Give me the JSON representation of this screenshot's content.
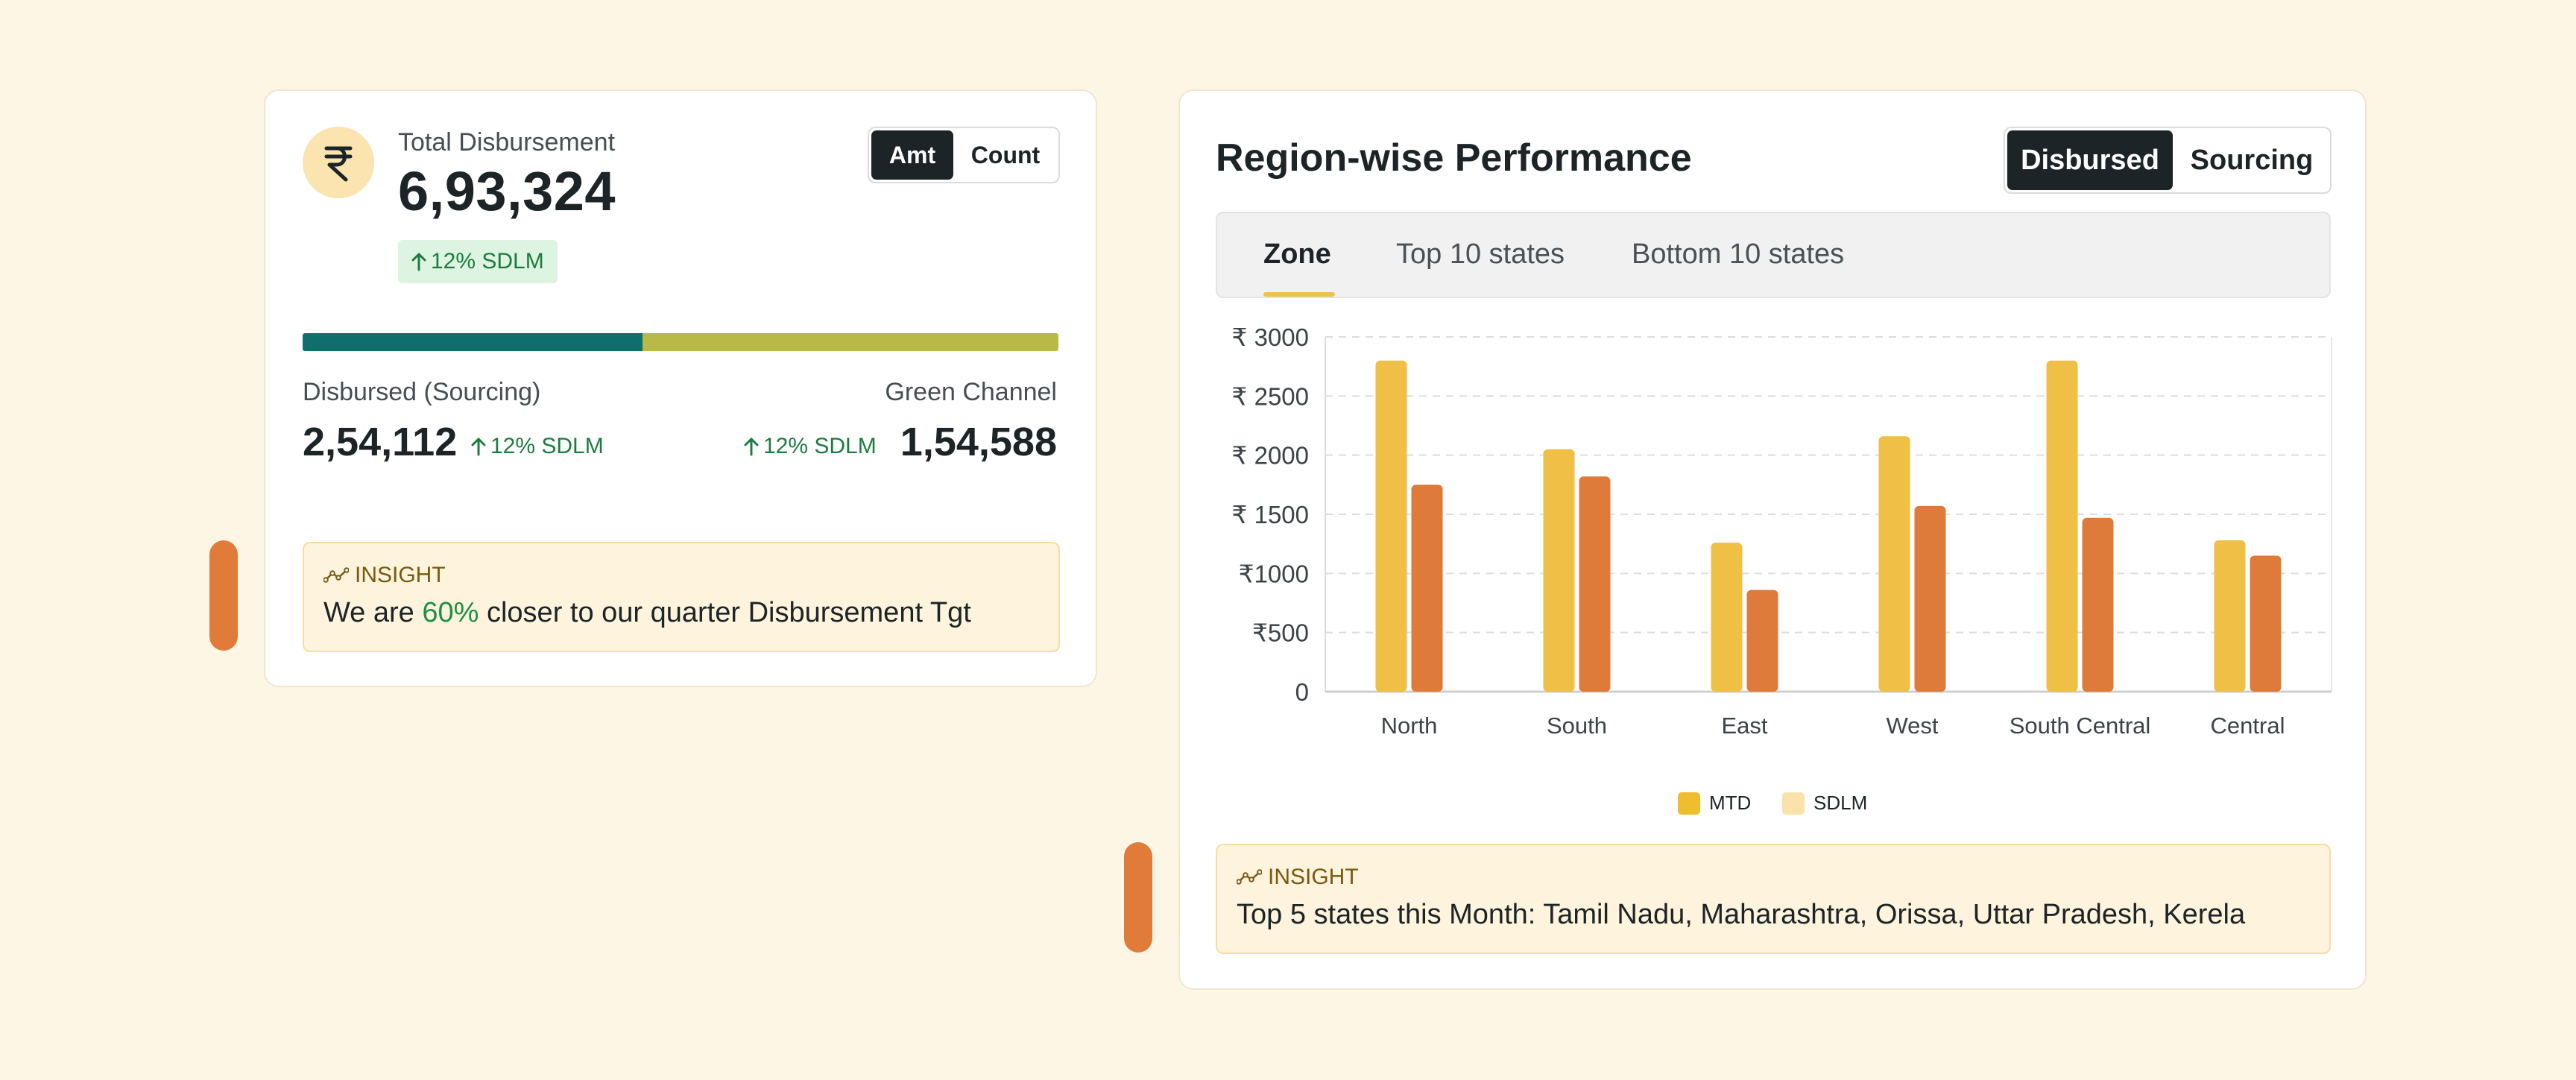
{
  "left_card": {
    "title": "Total Disbursement",
    "value": "6,93,324",
    "delta": "12% SDLM",
    "toggle": {
      "options": [
        "Amt",
        "Count"
      ],
      "selected": "Amt"
    },
    "split": {
      "sourcing_share": 0.45,
      "colors": [
        "#0f6f6c",
        "#b8ba45"
      ]
    },
    "sourcing": {
      "label": "Disbursed (Sourcing)",
      "value": "2,54,112",
      "delta": "12% SDLM"
    },
    "green_channel": {
      "label": "Green Channel",
      "value": "1,54,588",
      "delta": "12% SDLM"
    },
    "insight": {
      "label": "INSIGHT",
      "text_before": "We are ",
      "highlight": "60%",
      "text_after": " closer to our quarter Disbursement Tgt"
    }
  },
  "right_card": {
    "title": "Region-wise Performance",
    "toggle": {
      "options": [
        "Disbursed",
        "Sourcing"
      ],
      "selected": "Disbursed"
    },
    "tabs": [
      "Zone",
      "Top 10 states",
      "Bottom 10 states"
    ],
    "active_tab": "Zone",
    "legend": [
      "MTD",
      "SDLM"
    ],
    "insight": {
      "label": "INSIGHT",
      "text": "Top 5 states this Month: Tamil Nadu, Maharashtra, Orissa, Uttar Pradesh, Kerela"
    }
  },
  "chart_data": {
    "type": "bar",
    "categories": [
      "North",
      "South",
      "East",
      "West",
      "South Central",
      "Central"
    ],
    "series": [
      {
        "name": "MTD",
        "values": [
          2800,
          2050,
          1260,
          2160,
          2800,
          1280
        ],
        "bar_color": "#f0bf45"
      },
      {
        "name": "SDLM",
        "values": [
          1750,
          1820,
          860,
          1570,
          1470,
          1150
        ],
        "bar_color": "#de7b3b"
      }
    ],
    "legend_colors": [
      "#eebd30",
      "#fbe2ab"
    ],
    "yticks": [
      0,
      500,
      1000,
      1500,
      2000,
      2500,
      3000
    ],
    "ytick_labels": [
      "0",
      "₹500",
      "₹1000",
      "₹ 1500",
      "₹ 2000",
      "₹ 2500",
      "₹ 3000"
    ],
    "ylim": [
      0,
      3000
    ],
    "grid": true,
    "legend_position": "bottom"
  }
}
